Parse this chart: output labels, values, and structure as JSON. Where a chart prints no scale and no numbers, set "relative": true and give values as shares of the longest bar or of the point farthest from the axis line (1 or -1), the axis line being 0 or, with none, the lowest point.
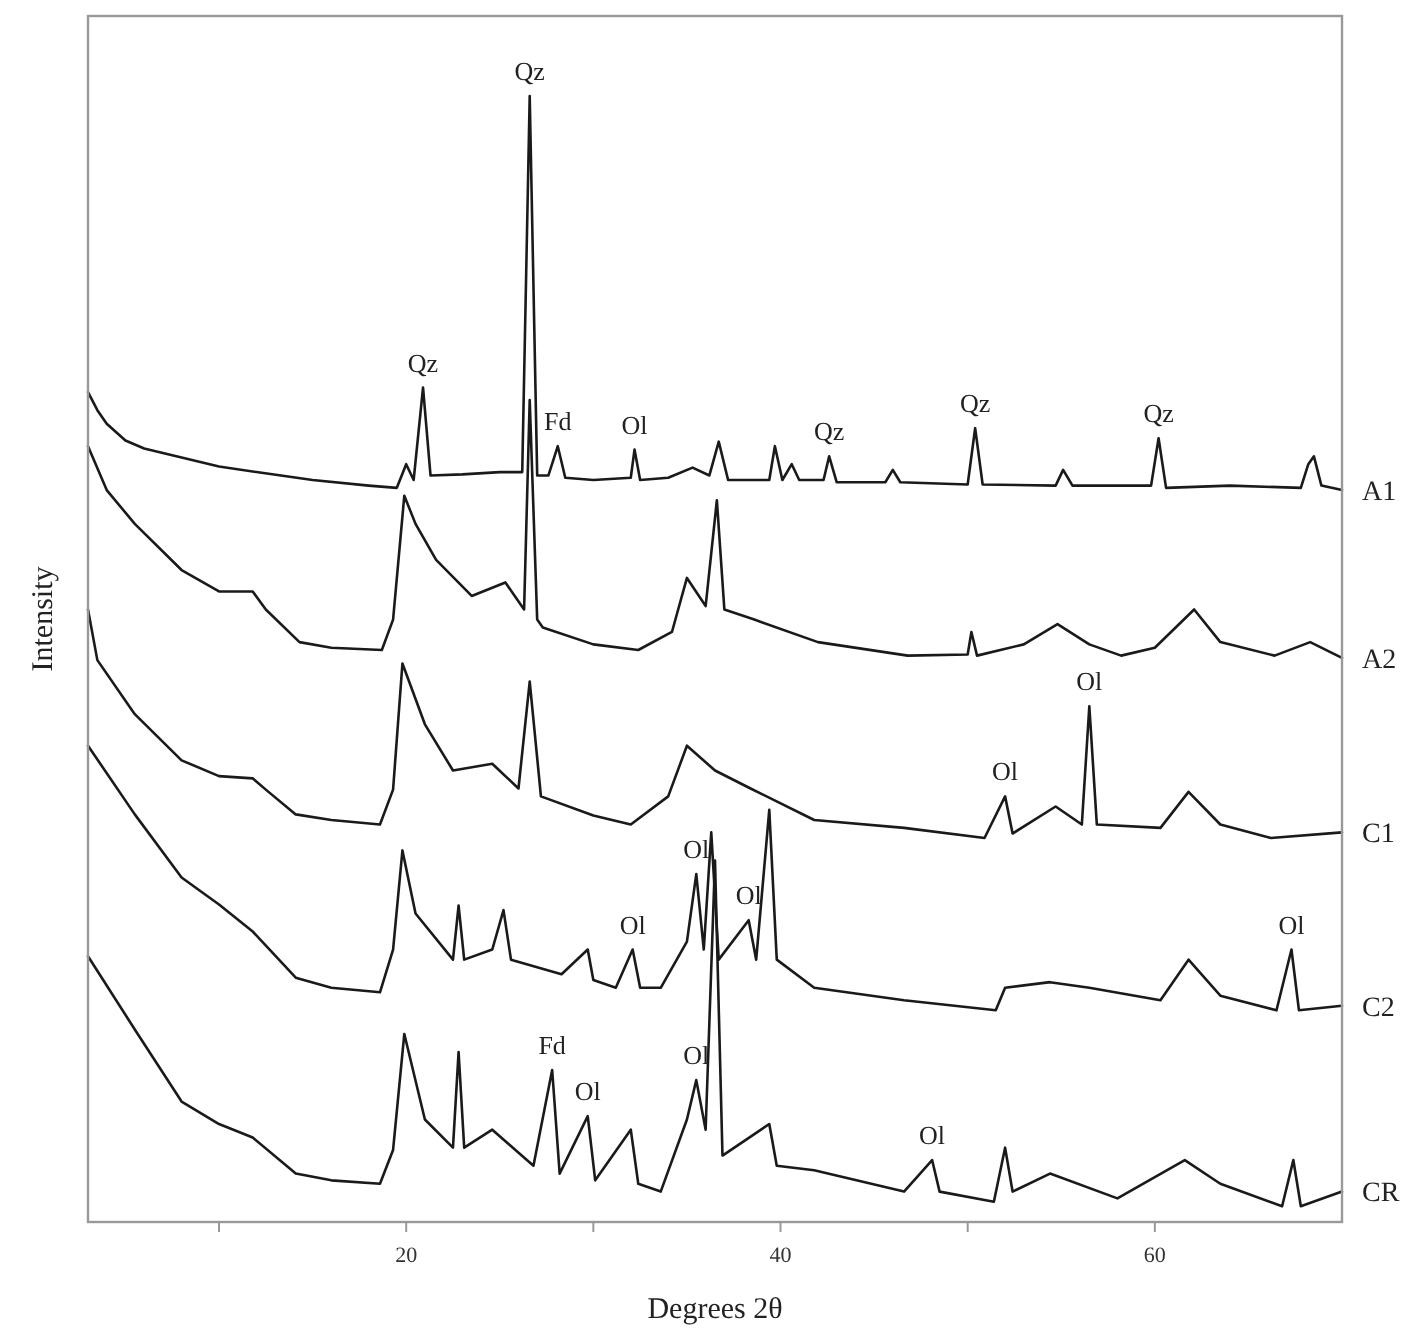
{
  "chart_data": {
    "type": "line",
    "relative": true,
    "xlabel": "Degrees 2θ",
    "ylabel": "Intensity",
    "xlim": [
      3,
      70
    ],
    "xticks": [
      {
        "value": 10,
        "label": null
      },
      20,
      {
        "value": 30,
        "label": null
      },
      40,
      {
        "value": 50,
        "label": null
      },
      60
    ],
    "grid": false,
    "marker": "none",
    "line_style": "solid",
    "series": [
      {
        "name": "A1",
        "color": "#1a1a1a",
        "x": [
          3,
          3.5,
          4,
          5,
          6,
          8,
          10,
          12,
          15,
          18,
          19.5,
          20,
          20.4,
          20.9,
          21.3,
          23,
          25,
          26.2,
          26.6,
          27,
          27.6,
          28.1,
          28.5,
          30,
          32,
          32.2,
          32.5,
          34,
          35.3,
          36.2,
          36.7,
          37.2,
          39.4,
          39.7,
          40.1,
          40.6,
          41,
          42.3,
          42.6,
          43,
          45.6,
          46,
          46.4,
          50,
          50.4,
          50.8,
          54.7,
          55.1,
          55.6,
          59.8,
          60.2,
          60.6,
          64,
          67.8,
          68.2,
          68.5,
          68.9,
          70
        ],
        "values": [
          0.737,
          0.721,
          0.709,
          0.694,
          0.687,
          0.679,
          0.671,
          0.666,
          0.659,
          0.654,
          0.652,
          0.673,
          0.659,
          0.741,
          0.663,
          0.664,
          0.666,
          0.666,
          1.0,
          0.663,
          0.663,
          0.689,
          0.661,
          0.659,
          0.661,
          0.686,
          0.659,
          0.661,
          0.67,
          0.663,
          0.693,
          0.659,
          0.659,
          0.689,
          0.659,
          0.673,
          0.659,
          0.659,
          0.68,
          0.657,
          0.657,
          0.668,
          0.657,
          0.655,
          0.705,
          0.655,
          0.654,
          0.668,
          0.654,
          0.654,
          0.696,
          0.652,
          0.654,
          0.652,
          0.673,
          0.68,
          0.654,
          0.65
        ]
      },
      {
        "name": "A2",
        "color": "#1a1a1a",
        "x": [
          3,
          4,
          5.5,
          8,
          10,
          11.8,
          12.5,
          14.3,
          16,
          18.7,
          19.3,
          19.9,
          20.5,
          21.6,
          23.5,
          25.3,
          26.3,
          26.6,
          27,
          27.3,
          30,
          32.4,
          34.2,
          35,
          36,
          36.6,
          37,
          38.6,
          42,
          46.8,
          50,
          50.2,
          50.5,
          53,
          54.8,
          56.5,
          58.2,
          60,
          62.1,
          63.5,
          66.4,
          68.3,
          70
        ],
        "values": [
          0.689,
          0.65,
          0.62,
          0.579,
          0.56,
          0.56,
          0.544,
          0.515,
          0.51,
          0.508,
          0.535,
          0.645,
          0.62,
          0.588,
          0.556,
          0.568,
          0.544,
          0.73,
          0.535,
          0.528,
          0.513,
          0.508,
          0.524,
          0.572,
          0.547,
          0.641,
          0.544,
          0.535,
          0.515,
          0.503,
          0.504,
          0.524,
          0.503,
          0.513,
          0.531,
          0.513,
          0.503,
          0.51,
          0.544,
          0.515,
          0.503,
          0.515,
          0.501
        ]
      },
      {
        "name": "C1",
        "color": "#1a1a1a",
        "x": [
          3,
          3.5,
          5.5,
          8,
          10,
          11.8,
          12.5,
          14.1,
          16,
          18.6,
          19.3,
          19.8,
          21,
          22.5,
          24.6,
          26,
          26.6,
          27.2,
          30,
          32,
          34,
          35,
          36.5,
          38.4,
          41.8,
          46.6,
          50.9,
          52,
          52.4,
          54.7,
          56.1,
          56.5,
          56.9,
          60.3,
          61.8,
          63.5,
          66.2,
          70
        ],
        "values": [
          0.544,
          0.499,
          0.451,
          0.41,
          0.396,
          0.394,
          0.384,
          0.362,
          0.357,
          0.353,
          0.384,
          0.496,
          0.442,
          0.401,
          0.407,
          0.385,
          0.48,
          0.378,
          0.361,
          0.353,
          0.378,
          0.423,
          0.401,
          0.385,
          0.357,
          0.35,
          0.341,
          0.378,
          0.345,
          0.369,
          0.353,
          0.458,
          0.353,
          0.35,
          0.382,
          0.353,
          0.341,
          0.346
        ]
      },
      {
        "name": "C2",
        "color": "#1a1a1a",
        "x": [
          3,
          5.5,
          8,
          10,
          11.8,
          14.1,
          16,
          18.6,
          19.3,
          19.8,
          20.5,
          22.5,
          22.8,
          23.1,
          24.6,
          25.2,
          25.6,
          28.3,
          29.7,
          30,
          31.2,
          32.1,
          32.5,
          33.6,
          35,
          35.5,
          35.9,
          36.3,
          36.7,
          38.3,
          38.7,
          39.4,
          39.8,
          41.8,
          46.6,
          51.5,
          52,
          54.4,
          56.5,
          60.3,
          61.8,
          63.5,
          66.5,
          67.3,
          67.7,
          70
        ],
        "values": [
          0.423,
          0.362,
          0.306,
          0.282,
          0.258,
          0.217,
          0.208,
          0.204,
          0.242,
          0.33,
          0.274,
          0.233,
          0.281,
          0.233,
          0.242,
          0.277,
          0.233,
          0.22,
          0.242,
          0.215,
          0.208,
          0.242,
          0.208,
          0.208,
          0.249,
          0.309,
          0.242,
          0.346,
          0.233,
          0.268,
          0.233,
          0.366,
          0.233,
          0.208,
          0.197,
          0.188,
          0.208,
          0.213,
          0.208,
          0.197,
          0.233,
          0.201,
          0.188,
          0.242,
          0.188,
          0.192
        ]
      },
      {
        "name": "CR",
        "color": "#1a1a1a",
        "x": [
          3,
          5.5,
          8,
          10,
          11.8,
          14.1,
          16,
          18.6,
          19.3,
          19.9,
          21,
          22.5,
          22.8,
          23.1,
          24.6,
          26.8,
          27.8,
          28.2,
          29.7,
          30.1,
          32,
          32.4,
          33.6,
          35,
          35.5,
          36,
          36.5,
          36.9,
          39.4,
          39.8,
          41.8,
          46.6,
          48.1,
          48.5,
          51.4,
          52,
          52.4,
          54.4,
          58,
          61.6,
          63.5,
          66.8,
          67.4,
          67.8,
          70
        ],
        "values": [
          0.236,
          0.171,
          0.107,
          0.087,
          0.075,
          0.043,
          0.037,
          0.034,
          0.064,
          0.167,
          0.091,
          0.066,
          0.151,
          0.066,
          0.082,
          0.05,
          0.135,
          0.043,
          0.094,
          0.037,
          0.082,
          0.034,
          0.027,
          0.091,
          0.126,
          0.082,
          0.321,
          0.059,
          0.087,
          0.05,
          0.046,
          0.027,
          0.055,
          0.027,
          0.018,
          0.066,
          0.027,
          0.043,
          0.021,
          0.055,
          0.034,
          0.014,
          0.055,
          0.014,
          0.027
        ]
      }
    ],
    "annotations": [
      {
        "text": "Qz",
        "x": 26.6,
        "y": 1.0
      },
      {
        "text": "Qz",
        "x": 20.9,
        "y": 0.741
      },
      {
        "text": "Fd",
        "x": 28.1,
        "y": 0.689
      },
      {
        "text": "Ol",
        "x": 32.2,
        "y": 0.686
      },
      {
        "text": "Qz",
        "x": 42.6,
        "y": 0.68
      },
      {
        "text": "Qz",
        "x": 50.4,
        "y": 0.705
      },
      {
        "text": "Qz",
        "x": 60.2,
        "y": 0.696
      },
      {
        "text": "Ol",
        "x": 56.5,
        "y": 0.458
      },
      {
        "text": "Ol",
        "x": 52,
        "y": 0.378
      },
      {
        "text": "Ol",
        "x": 32.1,
        "y": 0.242
      },
      {
        "text": "Ol",
        "x": 35.5,
        "y": 0.309
      },
      {
        "text": "Ol",
        "x": 38.3,
        "y": 0.268
      },
      {
        "text": "Ol",
        "x": 67.3,
        "y": 0.242
      },
      {
        "text": "Fd",
        "x": 27.8,
        "y": 0.135
      },
      {
        "text": "Ol",
        "x": 29.7,
        "y": 0.094
      },
      {
        "text": "Ol",
        "x": 35.5,
        "y": 0.126
      },
      {
        "text": "Ol",
        "x": 48.1,
        "y": 0.055
      }
    ]
  }
}
